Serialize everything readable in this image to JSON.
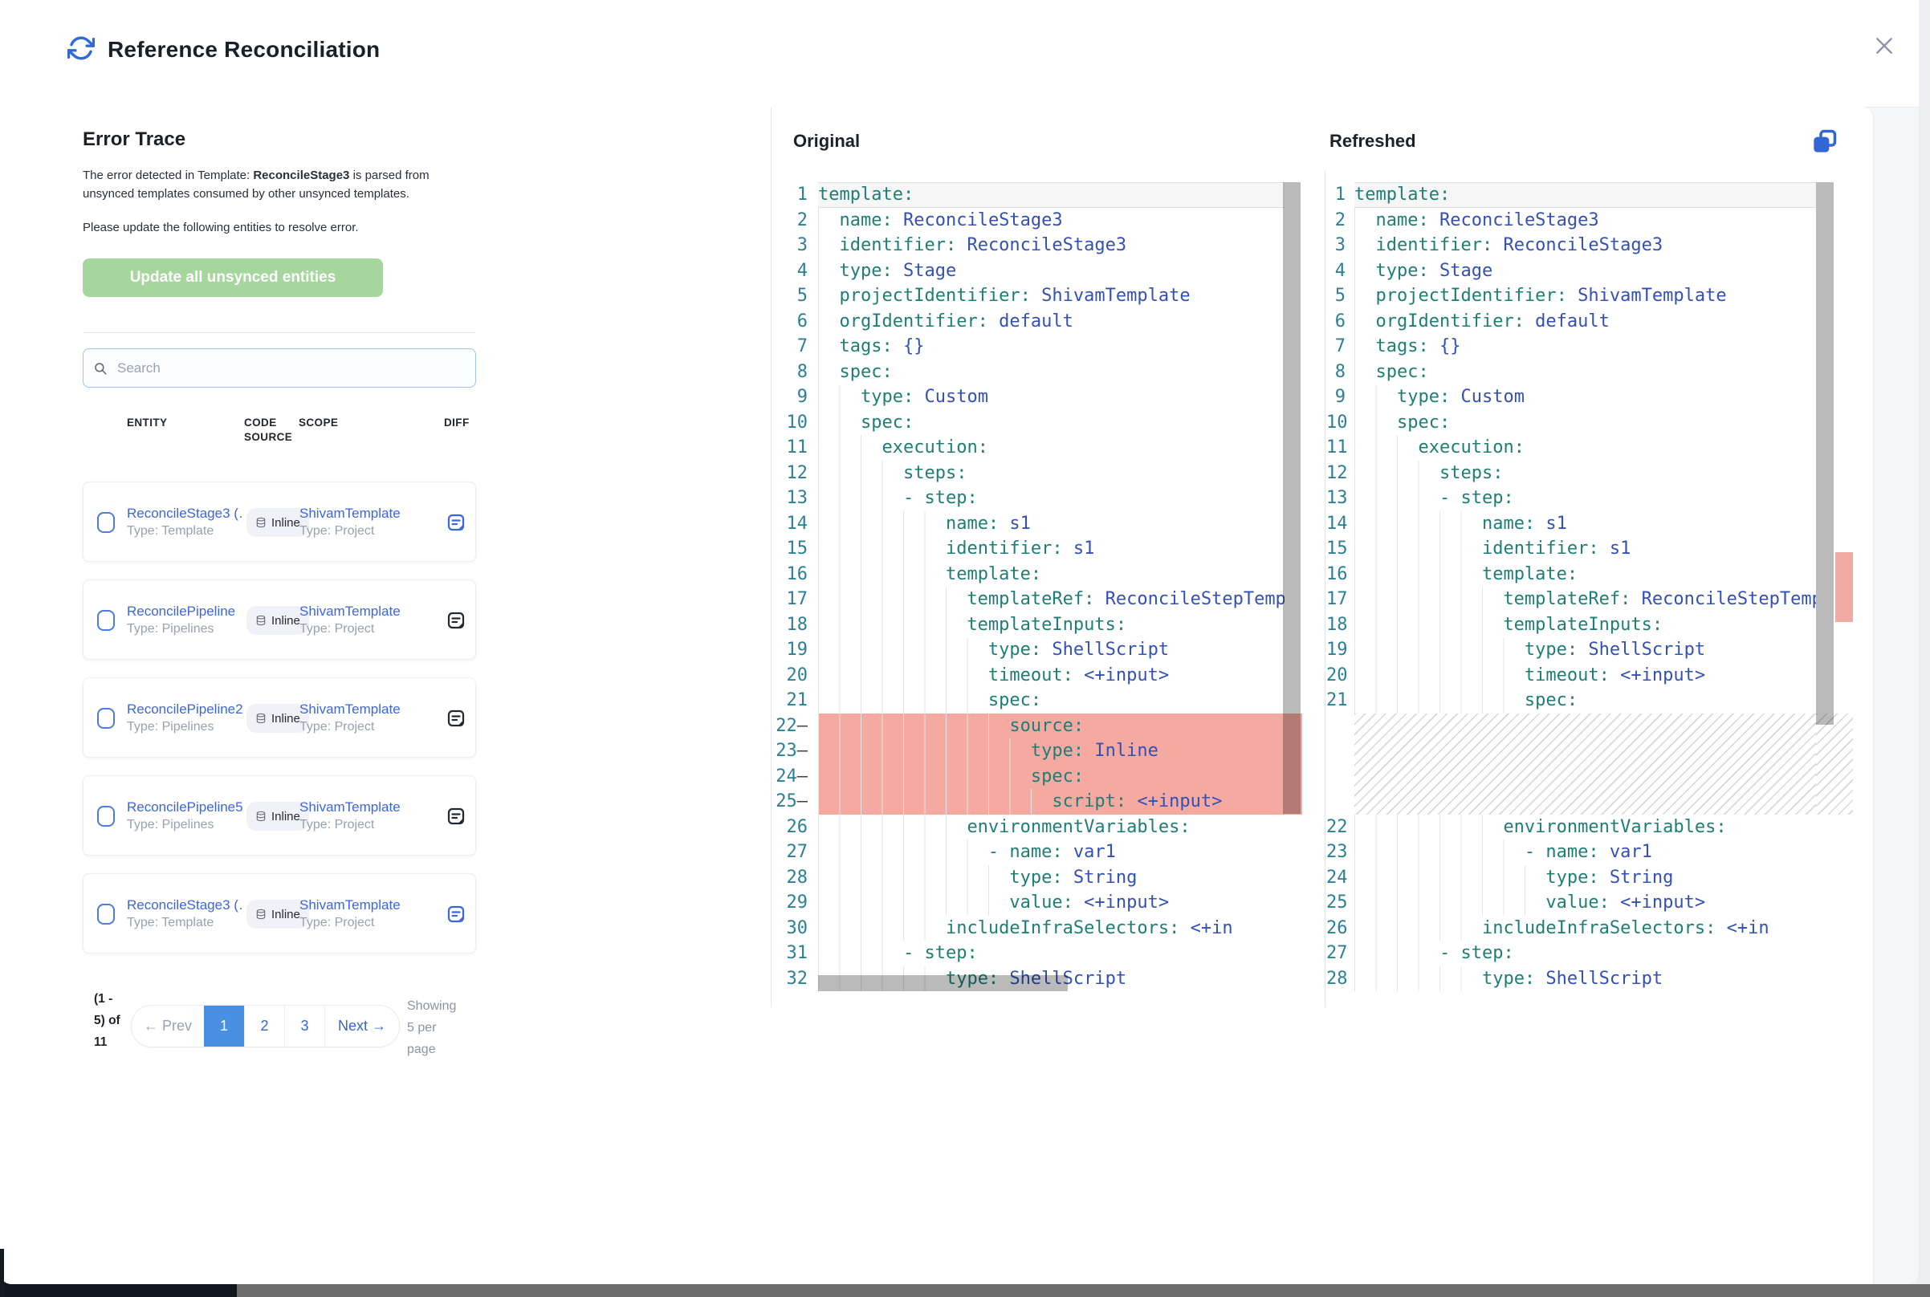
{
  "window": {
    "title": "Reference Reconciliation"
  },
  "panel": {
    "heading": "Error Trace",
    "description": {
      "prefix": "The error detected in Template: ",
      "highlight": "ReconcileStage3",
      "suffix": " is parsed from unsynced templates consumed by other unsynced templates."
    },
    "instruction": "Please update the following entities to resolve error.",
    "update_button": "Update all unsynced entities",
    "search": {
      "placeholder": "Search"
    }
  },
  "table": {
    "columns": [
      "ENTITY",
      "CODE SOURCE",
      "SCOPE",
      "DIFF"
    ],
    "rows": [
      {
        "entity": "ReconcileStage3 (…",
        "entity_type": "Type: Template",
        "code_source": "Inline",
        "scope": "ShivamTemplate",
        "scope_type": "Type: Project",
        "diff_icon_color": "#3b66dd"
      },
      {
        "entity": "ReconcilePipeline",
        "entity_type": "Type: Pipelines",
        "code_source": "Inline",
        "scope": "ShivamTemplate",
        "scope_type": "Type: Project",
        "diff_icon_color": "#23272e"
      },
      {
        "entity": "ReconcilePipeline2",
        "entity_type": "Type: Pipelines",
        "code_source": "Inline",
        "scope": "ShivamTemplate",
        "scope_type": "Type: Project",
        "diff_icon_color": "#23272e"
      },
      {
        "entity": "ReconcilePipeline5",
        "entity_type": "Type: Pipelines",
        "code_source": "Inline",
        "scope": "ShivamTemplate",
        "scope_type": "Type: Project",
        "diff_icon_color": "#23272e"
      },
      {
        "entity": "ReconcileStage3 (…",
        "entity_type": "Type: Template",
        "code_source": "Inline",
        "scope": "ShivamTemplate",
        "scope_type": "Type: Project",
        "diff_icon_color": "#3b66dd"
      }
    ]
  },
  "pagination": {
    "range_lines": [
      "(1 -",
      "5) of",
      "11"
    ],
    "prev_label": "← Prev",
    "pages": [
      "1",
      "2",
      "3"
    ],
    "active_page": "1",
    "next_label": "Next →",
    "showing_lines": [
      "Showing",
      "5 per",
      "page"
    ]
  },
  "diff": {
    "left_title": "Original",
    "right_title": "Refreshed",
    "original_lines": [
      {
        "n": 1,
        "t": "template:"
      },
      {
        "n": 2,
        "t": "  name: ReconcileStage3"
      },
      {
        "n": 3,
        "t": "  identifier: ReconcileStage3"
      },
      {
        "n": 4,
        "t": "  type: Stage"
      },
      {
        "n": 5,
        "t": "  projectIdentifier: ShivamTemplate"
      },
      {
        "n": 6,
        "t": "  orgIdentifier: default"
      },
      {
        "n": 7,
        "t": "  tags: {}"
      },
      {
        "n": 8,
        "t": "  spec:"
      },
      {
        "n": 9,
        "t": "    type: Custom"
      },
      {
        "n": 10,
        "t": "    spec:"
      },
      {
        "n": 11,
        "t": "      execution:"
      },
      {
        "n": 12,
        "t": "        steps:"
      },
      {
        "n": 13,
        "t": "        - step:"
      },
      {
        "n": 14,
        "t": "            name: s1"
      },
      {
        "n": 15,
        "t": "            identifier: s1"
      },
      {
        "n": 16,
        "t": "            template:"
      },
      {
        "n": 17,
        "t": "              templateRef: ReconcileStepTempl"
      },
      {
        "n": 18,
        "t": "              templateInputs:"
      },
      {
        "n": 19,
        "t": "                type: ShellScript"
      },
      {
        "n": 20,
        "t": "                timeout: <+input>"
      },
      {
        "n": 21,
        "t": "                spec:"
      },
      {
        "n": 22,
        "t": "                  source:",
        "removed": true
      },
      {
        "n": 23,
        "t": "                    type: Inline",
        "removed": true
      },
      {
        "n": 24,
        "t": "                    spec:",
        "removed": true
      },
      {
        "n": 25,
        "t": "                      script: <+input>",
        "removed": true
      },
      {
        "n": 26,
        "t": "              environmentVariables:"
      },
      {
        "n": 27,
        "t": "                - name: var1"
      },
      {
        "n": 28,
        "t": "                  type: String"
      },
      {
        "n": 29,
        "t": "                  value: <+input>"
      },
      {
        "n": 30,
        "t": "            includeInfraSelectors: <+in"
      },
      {
        "n": 31,
        "t": "        - step:"
      },
      {
        "n": 32,
        "t": "            type: ShellScript"
      }
    ],
    "refreshed_lines": [
      {
        "n": 1,
        "t": "template:"
      },
      {
        "n": 2,
        "t": "  name: ReconcileStage3"
      },
      {
        "n": 3,
        "t": "  identifier: ReconcileStage3"
      },
      {
        "n": 4,
        "t": "  type: Stage"
      },
      {
        "n": 5,
        "t": "  projectIdentifier: ShivamTemplate"
      },
      {
        "n": 6,
        "t": "  orgIdentifier: default"
      },
      {
        "n": 7,
        "t": "  tags: {}"
      },
      {
        "n": 8,
        "t": "  spec:"
      },
      {
        "n": 9,
        "t": "    type: Custom"
      },
      {
        "n": 10,
        "t": "    spec:"
      },
      {
        "n": 11,
        "t": "      execution:"
      },
      {
        "n": 12,
        "t": "        steps:"
      },
      {
        "n": 13,
        "t": "        - step:"
      },
      {
        "n": 14,
        "t": "            name: s1"
      },
      {
        "n": 15,
        "t": "            identifier: s1"
      },
      {
        "n": 16,
        "t": "            template:"
      },
      {
        "n": 17,
        "t": "              templateRef: ReconcileStepTempl"
      },
      {
        "n": 18,
        "t": "              templateInputs:"
      },
      {
        "n": 19,
        "t": "                type: ShellScript"
      },
      {
        "n": 20,
        "t": "                timeout: <+input>"
      },
      {
        "n": 21,
        "t": "                spec:"
      },
      {
        "gap": 4
      },
      {
        "n": 22,
        "t": "              environmentVariables:"
      },
      {
        "n": 23,
        "t": "                - name: var1"
      },
      {
        "n": 24,
        "t": "                  type: String"
      },
      {
        "n": 25,
        "t": "                  value: <+input>"
      },
      {
        "n": 26,
        "t": "            includeInfraSelectors: <+in"
      },
      {
        "n": 27,
        "t": "        - step:"
      },
      {
        "n": 28,
        "t": "            type: ShellScript"
      }
    ]
  },
  "colors": {
    "link_blue": "#3b66dd",
    "active_page_blue": "#4a90e2",
    "button_green": "#a6d59e",
    "code_key_teal": "#1e7e76",
    "code_value_blue": "#3450b4",
    "line_number_blue": "#2d7f95",
    "removed_red": "#f4a9a1",
    "icon_blue": "#2e6bd8"
  }
}
